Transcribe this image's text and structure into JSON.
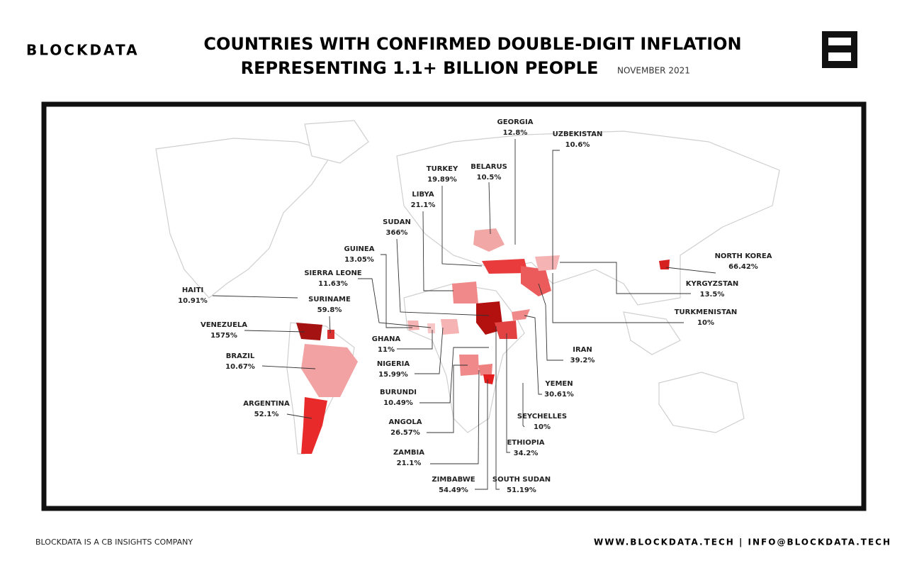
{
  "header": {
    "brand": "BLOCKDATA",
    "title_line1": "COUNTRIES WITH CONFIRMED DOUBLE-DIGIT INFLATION",
    "title_line2": "REPRESENTING 1.1+ BILLION PEOPLE",
    "date": "NOVEMBER 2021"
  },
  "countries": [
    {
      "name": "GEORGIA",
      "label": "12.8%"
    },
    {
      "name": "UZBEKISTAN",
      "label": "10.6%"
    },
    {
      "name": "TURKEY",
      "label": "19.89%"
    },
    {
      "name": "BELARUS",
      "label": "10.5%"
    },
    {
      "name": "LIBYA",
      "label": "21.1%"
    },
    {
      "name": "SUDAN",
      "label": "366%"
    },
    {
      "name": "GUINEA",
      "label": "13.05%"
    },
    {
      "name": "SIERRA LEONE",
      "label": "11.63%"
    },
    {
      "name": "HAITI",
      "label": "10.91%"
    },
    {
      "name": "SURINAME",
      "label": "59.8%"
    },
    {
      "name": "VENEZUELA",
      "label": "1575%"
    },
    {
      "name": "GHANA",
      "label": "11%"
    },
    {
      "name": "BRAZIL",
      "label": "10.67%"
    },
    {
      "name": "NIGERIA",
      "label": "15.99%"
    },
    {
      "name": "BURUNDI",
      "label": "10.49%"
    },
    {
      "name": "ARGENTINA",
      "label": "52.1%"
    },
    {
      "name": "ANGOLA",
      "label": "26.57%"
    },
    {
      "name": "ZAMBIA",
      "label": "21.1%"
    },
    {
      "name": "ZIMBABWE",
      "label": "54.49%"
    },
    {
      "name": "SOUTH SUDAN",
      "label": "51.19%"
    },
    {
      "name": "ETHIOPIA",
      "label": "34.2%"
    },
    {
      "name": "SEYCHELLES",
      "label": "10%"
    },
    {
      "name": "YEMEN",
      "label": "30.61%"
    },
    {
      "name": "IRAN",
      "label": "39.2%"
    },
    {
      "name": "TURKMENISTAN",
      "label": "10%"
    },
    {
      "name": "KYRGYZSTAN",
      "label": "13.5%"
    },
    {
      "name": "NORTH KOREA",
      "label": "66.42%"
    }
  ],
  "footer": {
    "left": "BLOCKDATA IS A CB INSIGHTS COMPANY",
    "right": "WWW.BLOCKDATA.TECH | INFO@BLOCKDATA.TECH"
  }
}
